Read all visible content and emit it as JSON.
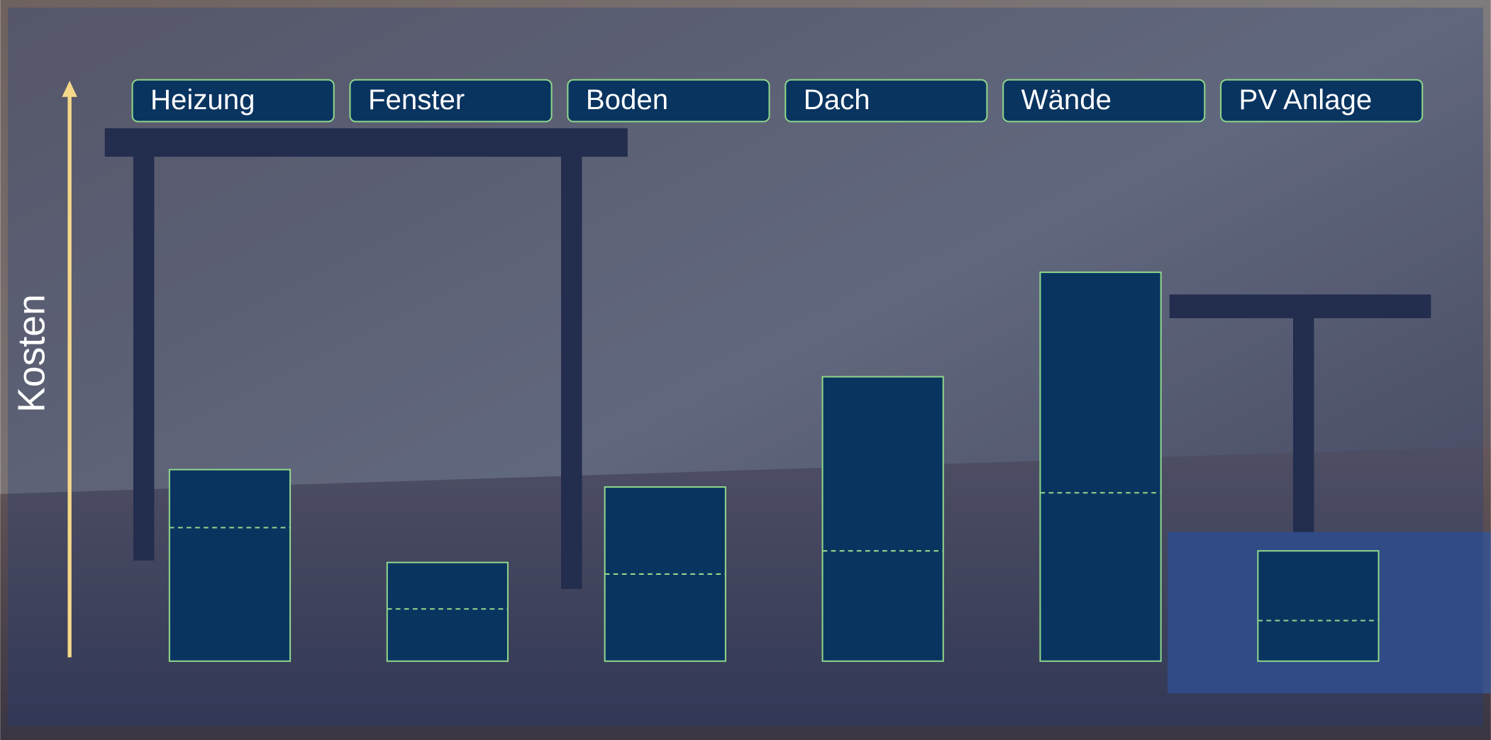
{
  "chart_data": {
    "type": "bar",
    "y_label": "Kosten",
    "categories": [
      "Heizung",
      "Fenster",
      "Boden",
      "Dach",
      "Wände",
      "PV Anlage"
    ],
    "values": [
      33,
      17,
      30,
      49,
      67,
      19
    ],
    "dashed_line_values": [
      23,
      9,
      15,
      19,
      29,
      7
    ],
    "ylim": [
      0,
      100
    ],
    "color": "#0a3460",
    "border_color": "#8fd88a",
    "axis_color": "#f5d88a"
  }
}
